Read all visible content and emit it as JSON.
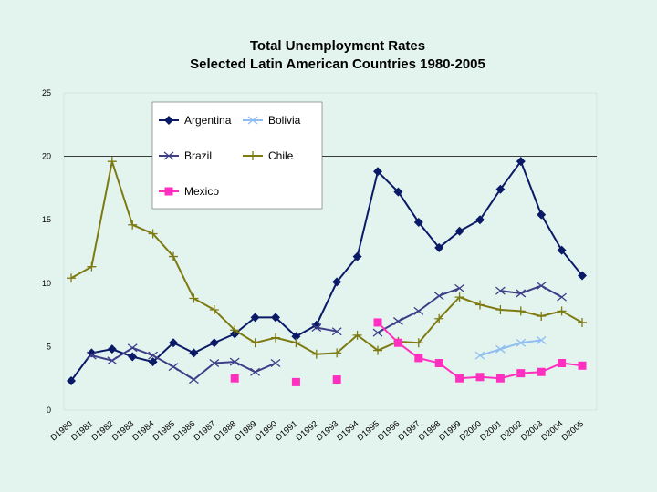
{
  "chart_data": {
    "type": "line",
    "title": [
      "Total Unemployment Rates",
      "Selected Latin American Countries 1980-2005"
    ],
    "xlabel": "",
    "ylabel": "",
    "ylim": [
      0,
      25
    ],
    "yticks": [
      "0",
      "5",
      "10",
      "15",
      "20",
      "25"
    ],
    "categories": [
      "D1980",
      "D1981",
      "D1982",
      "D1983",
      "D1984",
      "D1985",
      "D1986",
      "D1987",
      "D1988",
      "D1989",
      "D1990",
      "D1991",
      "D1992",
      "D1993",
      "D1994",
      "D1995",
      "D1996",
      "D1997",
      "D1998",
      "D1999",
      "D2000",
      "D2001",
      "D2002",
      "D2003",
      "D2004",
      "D2005"
    ],
    "legend_position": "top-left",
    "series": [
      {
        "name": "Argentina",
        "color": "#0b1a66",
        "marker": "diamond",
        "values": [
          2.3,
          4.5,
          4.8,
          4.2,
          3.8,
          5.3,
          4.5,
          5.3,
          6.0,
          7.3,
          7.3,
          5.8,
          6.7,
          10.1,
          12.1,
          18.8,
          17.2,
          14.8,
          12.8,
          14.1,
          15.0,
          17.4,
          19.6,
          15.4,
          12.6,
          10.6
        ]
      },
      {
        "name": "Bolivia",
        "color": "#8fbdf0",
        "marker": "x",
        "values": [
          null,
          null,
          null,
          null,
          null,
          null,
          null,
          null,
          null,
          null,
          null,
          null,
          null,
          null,
          null,
          null,
          null,
          null,
          null,
          null,
          4.3,
          4.8,
          5.3,
          5.5,
          null,
          null
        ]
      },
      {
        "name": "Brazil",
        "color": "#3f3f88",
        "marker": "x",
        "values": [
          null,
          4.3,
          3.9,
          4.9,
          4.3,
          3.4,
          2.4,
          3.7,
          3.8,
          3.0,
          3.7,
          null,
          6.5,
          6.2,
          null,
          6.1,
          7.0,
          7.8,
          9.0,
          9.6,
          null,
          9.4,
          9.2,
          9.8,
          8.9,
          null
        ]
      },
      {
        "name": "Chile",
        "color": "#7d7a12",
        "marker": "plus",
        "values": [
          10.4,
          11.3,
          19.6,
          14.6,
          13.9,
          12.1,
          8.8,
          7.9,
          6.3,
          5.3,
          5.7,
          5.3,
          4.4,
          4.5,
          5.9,
          4.7,
          5.4,
          5.3,
          7.2,
          8.9,
          8.3,
          7.9,
          7.8,
          7.4,
          7.8,
          6.9
        ]
      },
      {
        "name": "Mexico",
        "color": "#ff2fc0",
        "marker": "square",
        "values": [
          null,
          null,
          null,
          null,
          null,
          null,
          null,
          null,
          2.5,
          null,
          null,
          2.2,
          null,
          2.4,
          null,
          6.9,
          5.3,
          4.1,
          3.7,
          2.5,
          2.6,
          2.5,
          2.9,
          3.0,
          3.7,
          3.5
        ]
      }
    ]
  }
}
